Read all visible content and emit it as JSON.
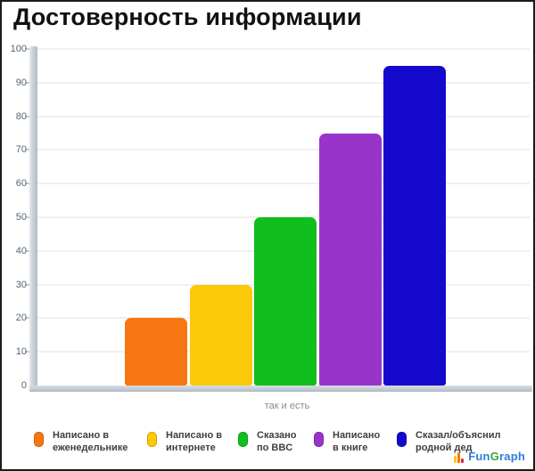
{
  "title": "Достоверность информации",
  "chart_data": {
    "type": "bar",
    "title": "Достоверность информации",
    "categories": [
      "Написано в еженедельнике",
      "Написано в интернете",
      "Сказано по BBC",
      "Написано в книге",
      "Сказал/объяснил родной дед"
    ],
    "values": [
      20,
      30,
      50,
      75,
      95
    ],
    "bar_colors": [
      "#f87611",
      "#fcc908",
      "#10bf1d",
      "#9934cb",
      "#1409cd"
    ],
    "xlabel": "так и есть",
    "ylabel": "",
    "ylim": [
      0,
      100
    ],
    "yticks": [
      0,
      10,
      20,
      30,
      40,
      50,
      60,
      70,
      80,
      90,
      100
    ],
    "grid": true,
    "legend_position": "bottom"
  },
  "legend": {
    "items": [
      {
        "line1": "Написано в",
        "line2": "еженедельнике",
        "color": "#f87611"
      },
      {
        "line1": "Написано в",
        "line2": "интернете",
        "color": "#fcc908"
      },
      {
        "line1": "Сказано",
        "line2": "по BBC",
        "color": "#10bf1d"
      },
      {
        "line1": "Написано",
        "line2": "в книге",
        "color": "#9934cb"
      },
      {
        "line1": "Сказал/объяснил",
        "line2": "родной дед",
        "color": "#1409cd"
      }
    ]
  },
  "branding": {
    "fun": "Fun",
    "g": "G",
    "raph": "raph",
    "icon_colors": [
      "#fcc908",
      "#f87611",
      "#e03020"
    ],
    "text_blue": "#2d7fd9",
    "text_green": "#35a93c"
  }
}
